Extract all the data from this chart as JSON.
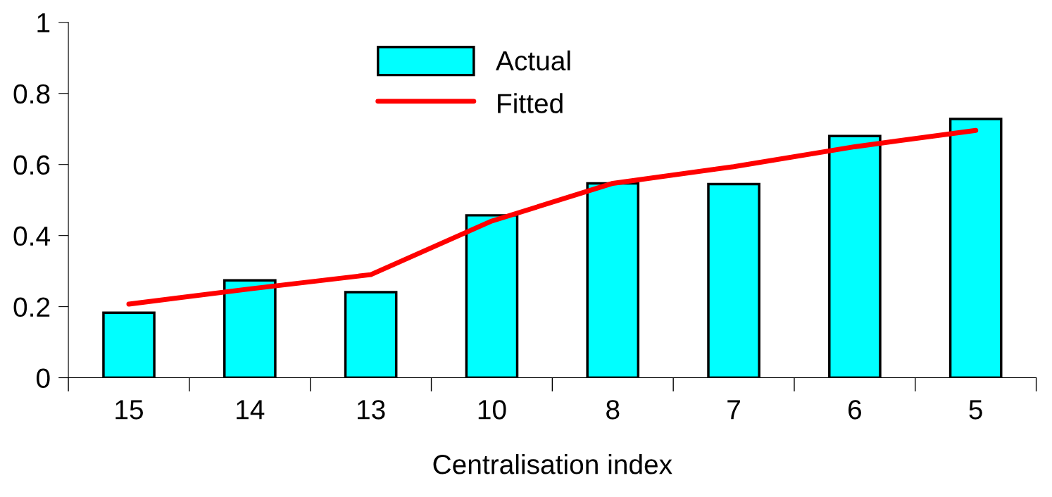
{
  "chart_data": {
    "type": "bar",
    "xlabel": "Centralisation index",
    "categories": [
      "15",
      "14",
      "13",
      "10",
      "8",
      "7",
      "6",
      "5"
    ],
    "series": [
      {
        "name": "Actual",
        "color": "#00ffff",
        "values": [
          0.183,
          0.274,
          0.241,
          0.457,
          0.547,
          0.545,
          0.68,
          0.728
        ]
      },
      {
        "name": "Fitted",
        "type": "line",
        "color": "#ff0000",
        "values": [
          0.207,
          0.25,
          0.29,
          0.441,
          0.547,
          0.594,
          0.65,
          0.696
        ]
      }
    ],
    "ylim": [
      0,
      1
    ],
    "yticks": [
      0,
      0.2,
      0.4,
      0.6,
      0.8,
      1
    ],
    "grid": false,
    "legend": "top",
    "marker": "none",
    "line_style": "solid"
  }
}
